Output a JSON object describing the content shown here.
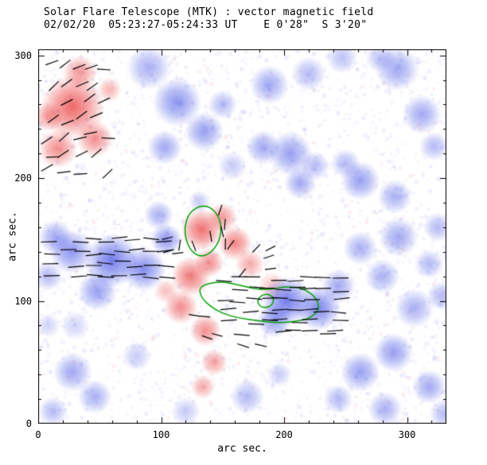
{
  "chart_data": {
    "type": "heatmap",
    "title": "Solar Flare Telescope (MTK) : vector magnetic field",
    "subtitle": "02/02/20  05:23:27-05:24:33 UT    E 0'28\"  S 3'20\"",
    "xlabel": "arc sec.",
    "ylabel": "arc sec.",
    "xlim": [
      0,
      332
    ],
    "ylim": [
      0,
      305
    ],
    "xticks": [
      "0",
      "100",
      "200",
      "300"
    ],
    "yticks": [
      "0",
      "100",
      "200",
      "300"
    ],
    "minor_tick": 20,
    "colors": {
      "positive": "#e82020",
      "negative": "#2030e0",
      "contour": "#00a000",
      "vectors": "#000000",
      "axis": "#000000"
    },
    "legend_note": "red = positive magnetic polarity, blue = negative polarity, black ticks = transverse field vectors, green = flare contours",
    "blobs_format": "[x_arcsec, y_arcsec, radius_arcsec, polarity(+1 red / -1 blue), intensity 0-1]",
    "blobs": [
      [
        28,
        258,
        26,
        1,
        0.8
      ],
      [
        16,
        224,
        16,
        1,
        0.6
      ],
      [
        46,
        232,
        15,
        1,
        0.6
      ],
      [
        34,
        286,
        14,
        1,
        0.55
      ],
      [
        58,
        272,
        10,
        1,
        0.4
      ],
      [
        8,
        250,
        12,
        1,
        0.5
      ],
      [
        133,
        158,
        17,
        1,
        0.75
      ],
      [
        150,
        168,
        12,
        1,
        0.55
      ],
      [
        160,
        147,
        14,
        1,
        0.65
      ],
      [
        124,
        120,
        16,
        1,
        0.7
      ],
      [
        139,
        131,
        12,
        1,
        0.6
      ],
      [
        116,
        95,
        14,
        1,
        0.6
      ],
      [
        136,
        76,
        13,
        1,
        0.6
      ],
      [
        143,
        50,
        11,
        1,
        0.5
      ],
      [
        134,
        30,
        10,
        1,
        0.45
      ],
      [
        172,
        130,
        12,
        1,
        0.45
      ],
      [
        190,
        112,
        12,
        1,
        0.3
      ],
      [
        104,
        108,
        10,
        1,
        0.35
      ],
      [
        90,
        290,
        18,
        -1,
        0.45
      ],
      [
        113,
        262,
        20,
        -1,
        0.6
      ],
      [
        135,
        238,
        16,
        -1,
        0.55
      ],
      [
        103,
        225,
        14,
        -1,
        0.5
      ],
      [
        150,
        260,
        12,
        -1,
        0.4
      ],
      [
        188,
        276,
        16,
        -1,
        0.5
      ],
      [
        220,
        285,
        14,
        -1,
        0.4
      ],
      [
        247,
        298,
        13,
        -1,
        0.35
      ],
      [
        278,
        298,
        12,
        -1,
        0.35
      ],
      [
        292,
        289,
        18,
        -1,
        0.5
      ],
      [
        312,
        252,
        16,
        -1,
        0.5
      ],
      [
        322,
        226,
        12,
        -1,
        0.4
      ],
      [
        205,
        220,
        18,
        -1,
        0.55
      ],
      [
        183,
        225,
        14,
        -1,
        0.5
      ],
      [
        213,
        196,
        13,
        -1,
        0.5
      ],
      [
        225,
        210,
        12,
        -1,
        0.4
      ],
      [
        262,
        198,
        16,
        -1,
        0.55
      ],
      [
        250,
        212,
        12,
        -1,
        0.4
      ],
      [
        290,
        185,
        14,
        -1,
        0.45
      ],
      [
        158,
        210,
        12,
        -1,
        0.3
      ],
      [
        27,
        140,
        18,
        -1,
        0.6
      ],
      [
        60,
        133,
        22,
        -1,
        0.75
      ],
      [
        86,
        126,
        18,
        -1,
        0.65
      ],
      [
        48,
        108,
        16,
        -1,
        0.55
      ],
      [
        14,
        152,
        14,
        -1,
        0.5
      ],
      [
        8,
        120,
        12,
        -1,
        0.4
      ],
      [
        104,
        150,
        13,
        -1,
        0.6
      ],
      [
        98,
        170,
        12,
        -1,
        0.45
      ],
      [
        131,
        181,
        9,
        -1,
        0.3
      ],
      [
        202,
        100,
        20,
        -1,
        0.75
      ],
      [
        228,
        94,
        18,
        -1,
        0.7
      ],
      [
        192,
        84,
        14,
        -1,
        0.55
      ],
      [
        244,
        112,
        14,
        -1,
        0.5
      ],
      [
        262,
        143,
        14,
        -1,
        0.45
      ],
      [
        280,
        120,
        14,
        -1,
        0.45
      ],
      [
        293,
        152,
        16,
        -1,
        0.5
      ],
      [
        306,
        94,
        16,
        -1,
        0.45
      ],
      [
        318,
        130,
        12,
        -1,
        0.4
      ],
      [
        325,
        160,
        12,
        -1,
        0.4
      ],
      [
        328,
        104,
        12,
        -1,
        0.4
      ],
      [
        289,
        58,
        16,
        -1,
        0.55
      ],
      [
        262,
        42,
        16,
        -1,
        0.55
      ],
      [
        318,
        30,
        14,
        -1,
        0.5
      ],
      [
        282,
        12,
        14,
        -1,
        0.45
      ],
      [
        244,
        20,
        12,
        -1,
        0.4
      ],
      [
        28,
        42,
        16,
        -1,
        0.5
      ],
      [
        46,
        22,
        14,
        -1,
        0.45
      ],
      [
        12,
        10,
        12,
        -1,
        0.4
      ],
      [
        80,
        55,
        12,
        -1,
        0.3
      ],
      [
        170,
        22,
        14,
        -1,
        0.4
      ],
      [
        120,
        10,
        12,
        -1,
        0.3
      ],
      [
        196,
        40,
        10,
        -1,
        0.3
      ],
      [
        330,
        8,
        12,
        -1,
        0.4
      ],
      [
        8,
        80,
        10,
        -1,
        0.25
      ],
      [
        30,
        80,
        12,
        -1,
        0.25
      ]
    ],
    "vector_clusters_format": "{x,y,w,h in arcsec, cols,rows grid, angle deg, spread deg, len arcsec, prob fill, seed}",
    "vector_clusters": [
      {
        "x": 4,
        "y": 198,
        "w": 58,
        "h": 100,
        "cols": 5,
        "rows": 7,
        "angle": 20,
        "spread": 50,
        "len": 11,
        "prob": 0.72,
        "seed": 7
      },
      {
        "x": 5,
        "y": 115,
        "w": 103,
        "h": 40,
        "cols": 9,
        "rows": 4,
        "angle": 0,
        "spread": 14,
        "len": 13,
        "prob": 0.8,
        "seed": 11
      },
      {
        "x": 112,
        "y": 140,
        "w": 43,
        "h": 38,
        "cols": 4,
        "rows": 4,
        "angle": 90,
        "spread": 45,
        "len": 9,
        "prob": 0.7,
        "seed": 23
      },
      {
        "x": 150,
        "y": 120,
        "w": 45,
        "h": 30,
        "cols": 4,
        "rows": 3,
        "angle": 30,
        "spread": 50,
        "len": 9,
        "prob": 0.6,
        "seed": 31
      },
      {
        "x": 147,
        "y": 70,
        "w": 103,
        "h": 52,
        "cols": 9,
        "rows": 6,
        "angle": 0,
        "spread": 12,
        "len": 13,
        "prob": 0.85,
        "seed": 43
      },
      {
        "x": 163,
        "y": 58,
        "w": 52,
        "h": 12,
        "cols": 4,
        "rows": 1,
        "angle": -10,
        "spread": 20,
        "len": 10,
        "prob": 0.6,
        "seed": 51
      },
      {
        "x": 124,
        "y": 65,
        "w": 26,
        "h": 28,
        "cols": 3,
        "rows": 2,
        "angle": -20,
        "spread": 40,
        "len": 9,
        "prob": 0.6,
        "seed": 57
      },
      {
        "x": 100,
        "y": 133,
        "w": 20,
        "h": 22,
        "cols": 2,
        "rows": 2,
        "angle": 10,
        "spread": 30,
        "len": 9,
        "prob": 0.7,
        "seed": 61
      }
    ],
    "contours": [
      [
        [
          136,
          178
        ],
        [
          143,
          174
        ],
        [
          148,
          166
        ],
        [
          149,
          156
        ],
        [
          146,
          146
        ],
        [
          139,
          138
        ],
        [
          131,
          136
        ],
        [
          124,
          141
        ],
        [
          120,
          150
        ],
        [
          119,
          160
        ],
        [
          122,
          170
        ],
        [
          128,
          176
        ]
      ],
      [
        [
          131,
          112
        ],
        [
          146,
          116
        ],
        [
          160,
          114
        ],
        [
          174,
          110
        ],
        [
          188,
          109
        ],
        [
          202,
          112
        ],
        [
          216,
          110
        ],
        [
          226,
          103
        ],
        [
          229,
          94
        ],
        [
          222,
          86
        ],
        [
          208,
          83
        ],
        [
          193,
          82
        ],
        [
          178,
          84
        ],
        [
          163,
          86
        ],
        [
          149,
          90
        ],
        [
          138,
          97
        ],
        [
          132,
          104
        ]
      ],
      [
        [
          180,
          104
        ],
        [
          187,
          106
        ],
        [
          192,
          102
        ],
        [
          190,
          96
        ],
        [
          183,
          94
        ],
        [
          178,
          98
        ]
      ]
    ]
  }
}
